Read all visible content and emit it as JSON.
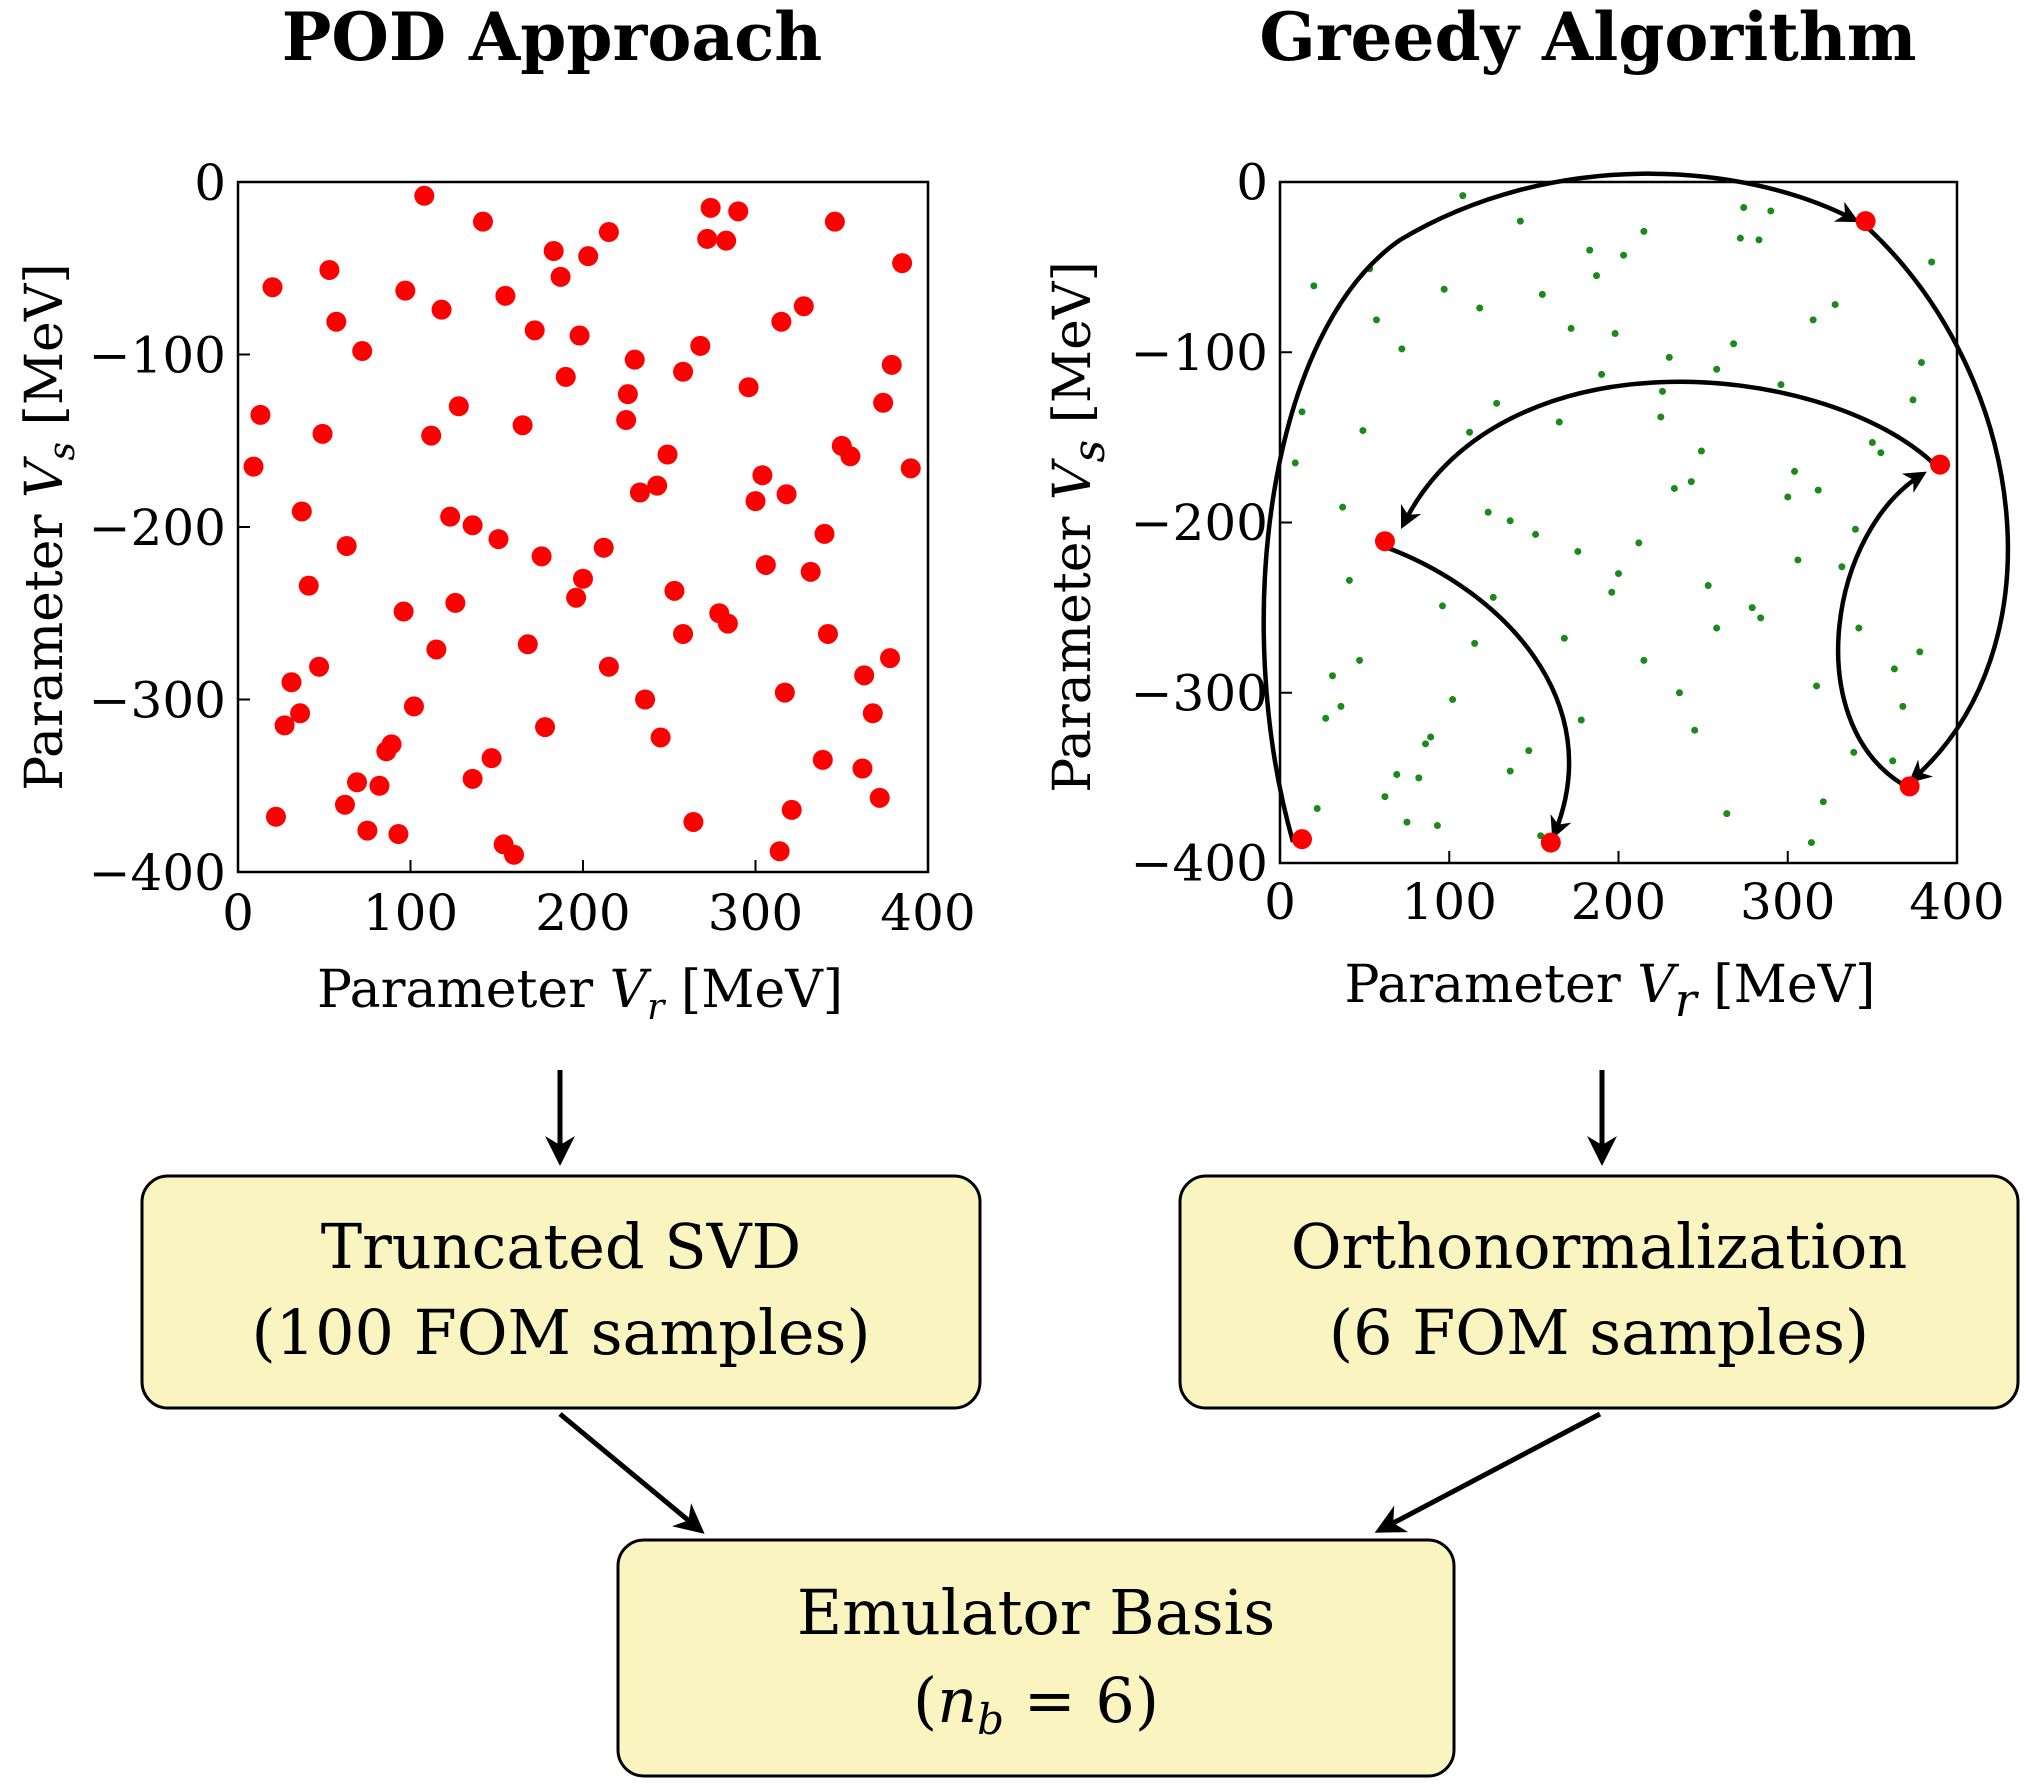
{
  "titles": {
    "left": "POD Approach",
    "right": "Greedy Algorithm"
  },
  "colors": {
    "pod_point": "#ff0000",
    "greedy_point": "#ff0000",
    "background_point": "#1a8a1a",
    "box_fill": "#faf4c0"
  },
  "boxes": {
    "svd": {
      "line1": "Truncated SVD",
      "line2": "(100 FOM samples)"
    },
    "orth": {
      "line1": "Orthonormalization",
      "line2": "(6 FOM samples)"
    },
    "emu": {
      "line1": "Emulator Basis",
      "line2": "(n_b = 6)"
    }
  },
  "chart_data": [
    {
      "type": "scatter",
      "xlabel": "Parameter V_r [MeV]",
      "ylabel": "Parameter V_s [MeV]",
      "xlim": [
        0,
        400
      ],
      "ylim": [
        -400,
        0
      ],
      "xticks": [
        "0",
        "100",
        "200",
        "300",
        "400"
      ],
      "yticks": [
        "0",
        "−100",
        "−200",
        "−300",
        "−400"
      ],
      "points": [
        [
          108,
          -8
        ],
        [
          142,
          -23
        ],
        [
          274,
          -15
        ],
        [
          290,
          -17
        ],
        [
          272,
          -33
        ],
        [
          283,
          -34
        ],
        [
          346,
          -23
        ],
        [
          183,
          -40
        ],
        [
          203,
          -43
        ],
        [
          215,
          -29
        ],
        [
          187,
          -55
        ],
        [
          53,
          -51
        ],
        [
          20,
          -61
        ],
        [
          97,
          -63
        ],
        [
          118,
          -74
        ],
        [
          155,
          -66
        ],
        [
          57,
          -81
        ],
        [
          72,
          -98
        ],
        [
          172,
          -86
        ],
        [
          198,
          -89
        ],
        [
          315,
          -81
        ],
        [
          328,
          -72
        ],
        [
          385,
          -47
        ],
        [
          268,
          -95
        ],
        [
          258,
          -110
        ],
        [
          230,
          -103
        ],
        [
          190,
          -113
        ],
        [
          226,
          -123
        ],
        [
          379,
          -106
        ],
        [
          296,
          -119
        ],
        [
          13,
          -135
        ],
        [
          128,
          -130
        ],
        [
          225,
          -138
        ],
        [
          165,
          -141
        ],
        [
          112,
          -147
        ],
        [
          49,
          -146
        ],
        [
          9,
          -165
        ],
        [
          249,
          -158
        ],
        [
          243,
          -176
        ],
        [
          233,
          -180
        ],
        [
          350,
          -153
        ],
        [
          355,
          -159
        ],
        [
          304,
          -170
        ],
        [
          318,
          -181
        ],
        [
          300,
          -185
        ],
        [
          390,
          -166
        ],
        [
          374,
          -128
        ],
        [
          37,
          -191
        ],
        [
          123,
          -194
        ],
        [
          136,
          -199
        ],
        [
          151,
          -207
        ],
        [
          176,
          -217
        ],
        [
          212,
          -212
        ],
        [
          63,
          -211
        ],
        [
          41,
          -234
        ],
        [
          200,
          -230
        ],
        [
          196,
          -241
        ],
        [
          306,
          -222
        ],
        [
          332,
          -226
        ],
        [
          340,
          -204
        ],
        [
          96,
          -249
        ],
        [
          126,
          -244
        ],
        [
          253,
          -237
        ],
        [
          279,
          -250
        ],
        [
          284,
          -256
        ],
        [
          258,
          -262
        ],
        [
          342,
          -262
        ],
        [
          168,
          -268
        ],
        [
          115,
          -271
        ],
        [
          47,
          -281
        ],
        [
          215,
          -281
        ],
        [
          363,
          -286
        ],
        [
          378,
          -276
        ],
        [
          31,
          -290
        ],
        [
          27,
          -315
        ],
        [
          102,
          -304
        ],
        [
          236,
          -300
        ],
        [
          317,
          -296
        ],
        [
          36,
          -308
        ],
        [
          368,
          -308
        ],
        [
          89,
          -326
        ],
        [
          86,
          -330
        ],
        [
          178,
          -316
        ],
        [
          245,
          -322
        ],
        [
          339,
          -335
        ],
        [
          147,
          -334
        ],
        [
          136,
          -346
        ],
        [
          69,
          -348
        ],
        [
          82,
          -350
        ],
        [
          362,
          -340
        ],
        [
          62,
          -361
        ],
        [
          75,
          -376
        ],
        [
          93,
          -378
        ],
        [
          22,
          -368
        ],
        [
          372,
          -357
        ],
        [
          321,
          -364
        ],
        [
          264,
          -371
        ],
        [
          154,
          -384
        ],
        [
          160,
          -390
        ],
        [
          314,
          -388
        ]
      ]
    },
    {
      "type": "scatter",
      "xlabel": "Parameter V_r [MeV]",
      "ylabel": "Parameter V_s [MeV]",
      "xlim": [
        0,
        400
      ],
      "ylim": [
        -400,
        0
      ],
      "xticks": [
        "0",
        "100",
        "200",
        "300",
        "400"
      ],
      "yticks": [
        "0",
        "−100",
        "−200",
        "−300",
        "−400"
      ],
      "selected_points": [
        [
          346,
          -23
        ],
        [
          390,
          -166
        ],
        [
          62,
          -211
        ],
        [
          13,
          -386
        ],
        [
          160,
          -388
        ],
        [
          372,
          -355
        ]
      ],
      "greedy_order": [
        [
          13,
          -386
        ],
        [
          346,
          -23
        ],
        [
          372,
          -355
        ],
        [
          390,
          -166
        ],
        [
          62,
          -211
        ],
        [
          160,
          -388
        ]
      ]
    }
  ]
}
